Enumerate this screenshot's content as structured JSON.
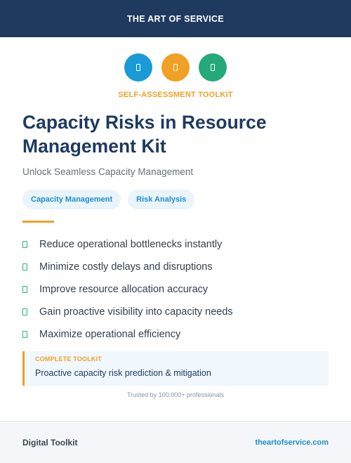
{
  "header": {
    "brand": "THE ART OF SERVICE"
  },
  "icons": [
    {
      "name": "document-icon",
      "color": "#1a9bd7"
    },
    {
      "name": "clipboard-icon",
      "color": "#f0a024"
    },
    {
      "name": "checklist-icon",
      "color": "#25a97a"
    }
  ],
  "kicker": "SELF-ASSESSMENT TOOLKIT",
  "title": "Capacity Risks in Resource Management Kit",
  "subtitle": "Unlock Seamless Capacity Management",
  "tags": [
    "Capacity Management",
    "Risk Analysis"
  ],
  "benefits": [
    "Reduce operational bottlenecks instantly",
    "Minimize costly delays and disruptions",
    "Improve resource allocation accuracy",
    "Gain proactive visibility into capacity needs",
    "Maximize operational efficiency"
  ],
  "callout": {
    "label": "COMPLETE TOOLKIT",
    "text": "Proactive capacity risk prediction & mitigation"
  },
  "trusted": "Trusted by 100,000+ professionals",
  "footer": {
    "left": "Digital Toolkit",
    "right": "theartofservice.com"
  },
  "colors": {
    "navy": "#1e3a5f",
    "accent": "#f0a024",
    "link": "#1a8fcf",
    "check": "#2ab07b"
  }
}
